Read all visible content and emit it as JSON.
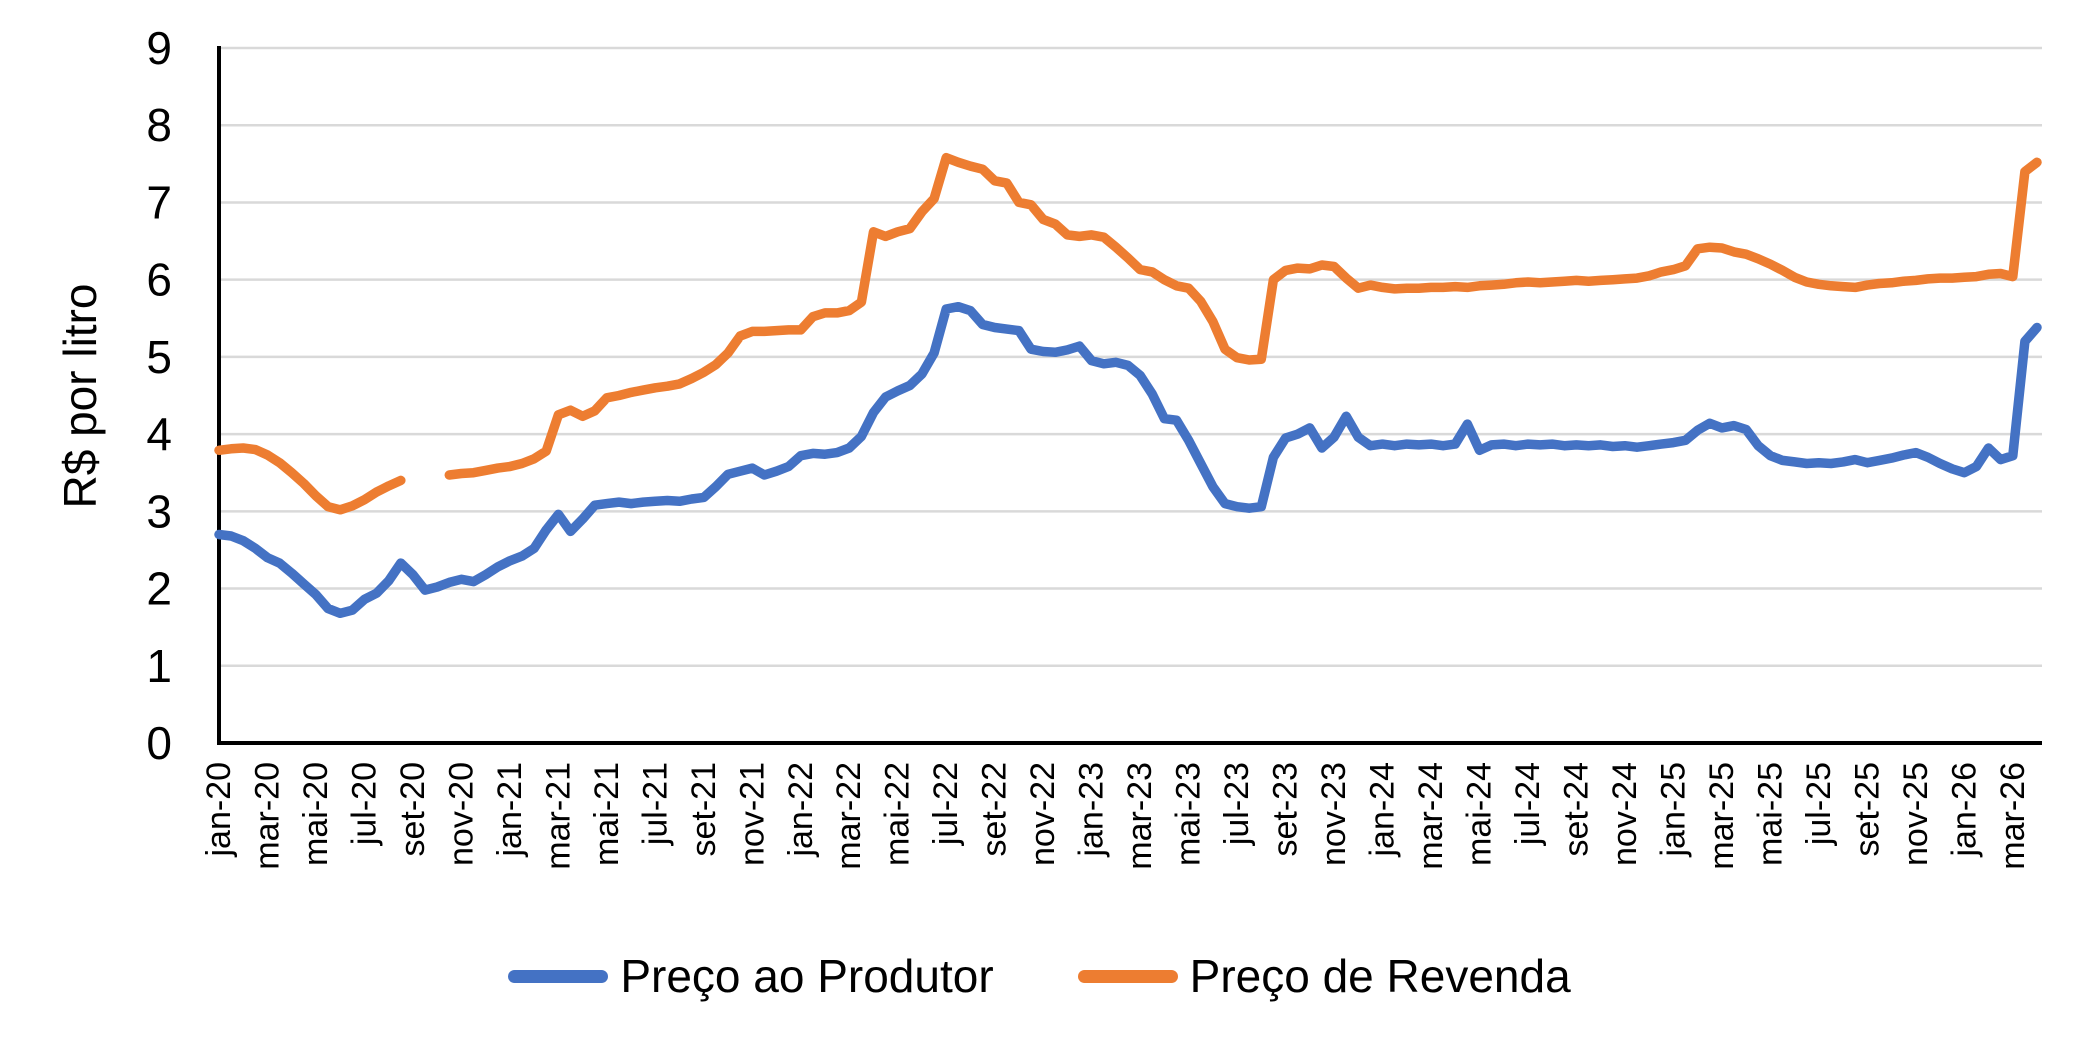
{
  "chart_data": {
    "type": "line",
    "title": "",
    "xlabel": "",
    "ylabel": "R$ por litro",
    "ylim": [
      0,
      9
    ],
    "y_ticks": [
      0,
      1,
      2,
      3,
      4,
      5,
      6,
      7,
      8,
      9
    ],
    "grid": "horizontal",
    "grid_color": "#d9d9d9",
    "axis_color": "#000000",
    "legend_position": "bottom",
    "x_start": "jan-20",
    "x_end": "apr-26",
    "x_step_months": 0.5,
    "tick_every_months": 2,
    "tick_labels": [
      "jan-20",
      "mar-20",
      "mai-20",
      "jul-20",
      "set-20",
      "nov-20",
      "jan-21",
      "mar-21",
      "mai-21",
      "jul-21",
      "set-21",
      "nov-21",
      "jan-22",
      "mar-22",
      "mai-22",
      "jul-22",
      "set-22",
      "nov-22",
      "jan-23",
      "mar-23",
      "mai-23",
      "jul-23",
      "set-23",
      "nov-23",
      "jan-24",
      "mar-24",
      "mai-24",
      "jul-24",
      "set-24",
      "nov-24",
      "jan-25",
      "mar-25",
      "mai-25",
      "jul-25",
      "set-25",
      "nov-25",
      "jan-26",
      "mar-26"
    ],
    "series": [
      {
        "name": "Preço ao Produtor",
        "color": "#4472c4",
        "values": [
          2.7,
          2.68,
          2.62,
          2.52,
          2.4,
          2.33,
          2.2,
          2.06,
          1.92,
          1.74,
          1.68,
          1.72,
          1.86,
          1.94,
          2.1,
          2.33,
          2.18,
          1.98,
          2.02,
          2.08,
          2.12,
          2.09,
          2.18,
          2.28,
          2.36,
          2.42,
          2.52,
          2.76,
          2.96,
          2.74,
          2.9,
          3.08,
          3.1,
          3.12,
          3.1,
          3.12,
          3.13,
          3.14,
          3.13,
          3.16,
          3.18,
          3.32,
          3.48,
          3.52,
          3.56,
          3.47,
          3.52,
          3.58,
          3.72,
          3.75,
          3.74,
          3.76,
          3.82,
          3.97,
          4.28,
          4.48,
          4.56,
          4.63,
          4.78,
          5.05,
          5.62,
          5.65,
          5.6,
          5.42,
          5.38,
          5.36,
          5.34,
          5.1,
          5.07,
          5.06,
          5.09,
          5.14,
          4.95,
          4.91,
          4.93,
          4.89,
          4.76,
          4.52,
          4.2,
          4.18,
          3.92,
          3.62,
          3.32,
          3.1,
          3.06,
          3.04,
          3.06,
          3.7,
          3.95,
          4.0,
          4.08,
          3.82,
          3.96,
          4.23,
          3.96,
          3.85,
          3.87,
          3.85,
          3.87,
          3.86,
          3.87,
          3.85,
          3.87,
          4.13,
          3.79,
          3.86,
          3.87,
          3.85,
          3.87,
          3.86,
          3.87,
          3.85,
          3.86,
          3.85,
          3.86,
          3.84,
          3.85,
          3.83,
          3.85,
          3.87,
          3.89,
          3.92,
          4.05,
          4.14,
          4.08,
          4.11,
          4.06,
          3.85,
          3.72,
          3.66,
          3.64,
          3.62,
          3.63,
          3.62,
          3.64,
          3.67,
          3.63,
          3.66,
          3.69,
          3.73,
          3.76,
          3.7,
          3.62,
          3.55,
          3.5,
          3.58,
          3.82,
          3.67,
          3.72,
          5.2,
          5.38
        ]
      },
      {
        "name": "Preço de Revenda",
        "color": "#ed7d31",
        "values": [
          3.79,
          3.81,
          3.82,
          3.8,
          3.73,
          3.63,
          3.5,
          3.36,
          3.2,
          3.06,
          3.02,
          3.07,
          3.15,
          3.25,
          3.33,
          3.4,
          null,
          null,
          null,
          3.47,
          3.49,
          3.5,
          3.53,
          3.56,
          3.58,
          3.62,
          3.68,
          3.78,
          4.25,
          4.31,
          4.23,
          4.3,
          4.47,
          4.5,
          4.54,
          4.57,
          4.6,
          4.62,
          4.65,
          4.72,
          4.8,
          4.9,
          5.05,
          5.27,
          5.33,
          5.33,
          5.34,
          5.35,
          5.35,
          5.52,
          5.57,
          5.57,
          5.6,
          5.71,
          6.62,
          6.56,
          6.62,
          6.66,
          6.88,
          7.05,
          7.58,
          7.52,
          7.47,
          7.43,
          7.28,
          7.25,
          7.0,
          6.97,
          6.78,
          6.72,
          6.58,
          6.56,
          6.58,
          6.55,
          6.42,
          6.28,
          6.13,
          6.1,
          6.0,
          5.92,
          5.89,
          5.72,
          5.46,
          5.1,
          4.99,
          4.96,
          4.97,
          6.0,
          6.12,
          6.15,
          6.14,
          6.19,
          6.17,
          6.02,
          5.89,
          5.93,
          5.9,
          5.88,
          5.89,
          5.89,
          5.9,
          5.9,
          5.91,
          5.9,
          5.92,
          5.93,
          5.94,
          5.96,
          5.97,
          5.96,
          5.97,
          5.98,
          5.99,
          5.98,
          5.99,
          6.0,
          6.01,
          6.02,
          6.05,
          6.1,
          6.13,
          6.18,
          6.4,
          6.42,
          6.41,
          6.36,
          6.33,
          6.27,
          6.2,
          6.12,
          6.03,
          5.97,
          5.94,
          5.92,
          5.91,
          5.9,
          5.93,
          5.95,
          5.96,
          5.98,
          5.99,
          6.01,
          6.02,
          6.02,
          6.03,
          6.04,
          6.07,
          6.08,
          6.04,
          7.4,
          7.52
        ]
      }
    ]
  },
  "legend": {
    "items": [
      {
        "label": "Preço ao Produtor",
        "color": "#4472c4"
      },
      {
        "label": "Preço de Revenda",
        "color": "#ed7d31"
      }
    ]
  }
}
